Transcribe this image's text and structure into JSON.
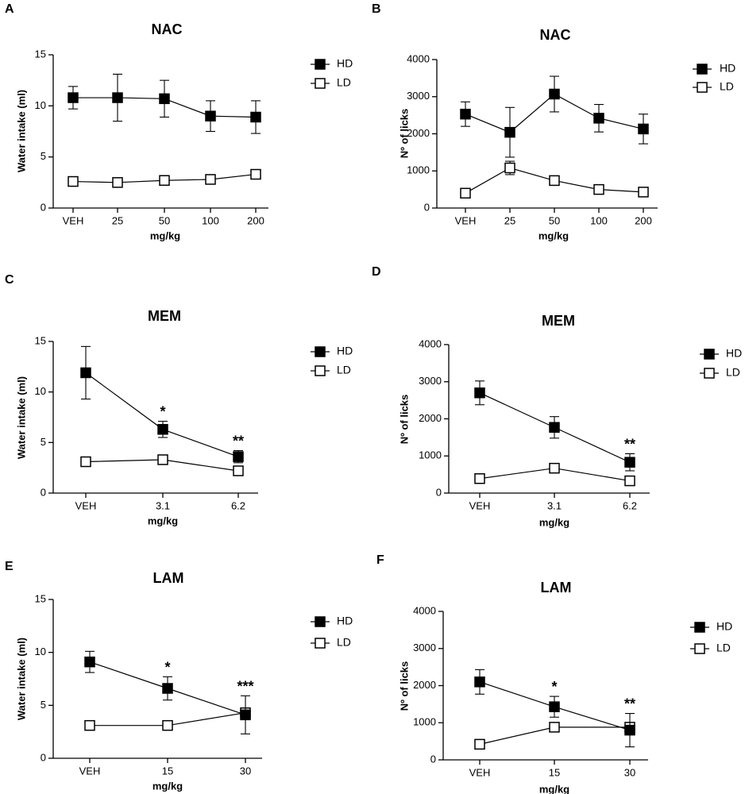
{
  "panel_labels": [
    "A",
    "B",
    "C",
    "D",
    "E",
    "F"
  ],
  "chart_data": [
    {
      "type": "line",
      "panel": "A",
      "title": "NAC",
      "xlabel": "mg/kg",
      "ylabel": "Water intake (ml)",
      "categories": [
        "VEH",
        "25",
        "50",
        "100",
        "200"
      ],
      "ylim": [
        0,
        15
      ],
      "yticks": [
        0,
        5,
        10,
        15
      ],
      "grid": false,
      "legend_position": "top-right",
      "series": [
        {
          "name": "HD",
          "marker": "filled-square",
          "values": [
            10.8,
            10.8,
            10.7,
            9.0,
            8.9
          ],
          "errors": [
            1.1,
            2.3,
            1.8,
            1.5,
            1.6
          ]
        },
        {
          "name": "LD",
          "marker": "open-square",
          "values": [
            2.6,
            2.5,
            2.7,
            2.8,
            3.3
          ],
          "errors": [
            0.2,
            0.2,
            0.2,
            0.2,
            0.3
          ]
        }
      ],
      "annotations": [
        "",
        "",
        "",
        "",
        ""
      ]
    },
    {
      "type": "line",
      "panel": "B",
      "title": "NAC",
      "xlabel": "mg/kg",
      "ylabel": "Nº of licks",
      "categories": [
        "VEH",
        "25",
        "50",
        "100",
        "200"
      ],
      "ylim": [
        0,
        4000
      ],
      "yticks": [
        0,
        1000,
        2000,
        3000,
        4000
      ],
      "grid": false,
      "legend_position": "top-right",
      "series": [
        {
          "name": "HD",
          "marker": "filled-square",
          "values": [
            2530,
            2040,
            3070,
            2420,
            2130
          ],
          "errors": [
            330,
            670,
            480,
            370,
            400
          ]
        },
        {
          "name": "LD",
          "marker": "open-square",
          "values": [
            400,
            1080,
            740,
            500,
            430
          ],
          "errors": [
            40,
            180,
            80,
            50,
            40
          ]
        }
      ],
      "annotations": [
        "",
        "",
        "",
        "",
        ""
      ]
    },
    {
      "type": "line",
      "panel": "C",
      "title": "MEM",
      "xlabel": "mg/kg",
      "ylabel": "Water intake (ml)",
      "categories": [
        "VEH",
        "3.1",
        "6.2"
      ],
      "ylim": [
        0,
        15
      ],
      "yticks": [
        0,
        5,
        10,
        15
      ],
      "grid": false,
      "legend_position": "top-right",
      "series": [
        {
          "name": "HD",
          "marker": "filled-square",
          "values": [
            11.9,
            6.3,
            3.6
          ],
          "errors": [
            2.6,
            0.8,
            0.6
          ]
        },
        {
          "name": "LD",
          "marker": "open-square",
          "values": [
            3.1,
            3.3,
            2.2
          ],
          "errors": [
            0.2,
            0.2,
            0.3
          ]
        }
      ],
      "annotations": [
        "",
        "*",
        "**"
      ]
    },
    {
      "type": "line",
      "panel": "D",
      "title": "MEM",
      "xlabel": "mg/kg",
      "ylabel": "Nº of licks",
      "categories": [
        "VEH",
        "3.1",
        "6.2"
      ],
      "ylim": [
        0,
        4000
      ],
      "yticks": [
        0,
        1000,
        2000,
        3000,
        4000
      ],
      "grid": false,
      "legend_position": "top-right",
      "series": [
        {
          "name": "HD",
          "marker": "filled-square",
          "values": [
            2700,
            1770,
            830
          ],
          "errors": [
            320,
            290,
            230
          ]
        },
        {
          "name": "LD",
          "marker": "open-square",
          "values": [
            390,
            670,
            330
          ],
          "errors": [
            40,
            90,
            60
          ]
        }
      ],
      "annotations": [
        "",
        "",
        "**"
      ]
    },
    {
      "type": "line",
      "panel": "E",
      "title": "LAM",
      "xlabel": "mg/kg",
      "ylabel": "Water intake (ml)",
      "categories": [
        "VEH",
        "15",
        "30"
      ],
      "ylim": [
        0,
        15
      ],
      "yticks": [
        0,
        5,
        10,
        15
      ],
      "grid": false,
      "legend_position": "top-right",
      "series": [
        {
          "name": "HD",
          "marker": "filled-square",
          "values": [
            9.1,
            6.6,
            4.1
          ],
          "errors": [
            1.0,
            1.1,
            1.8
          ]
        },
        {
          "name": "LD",
          "marker": "open-square",
          "values": [
            3.1,
            3.1,
            4.3
          ],
          "errors": [
            0.2,
            0.2,
            0.3
          ]
        }
      ],
      "annotations": [
        "",
        "*",
        "***"
      ]
    },
    {
      "type": "line",
      "panel": "F",
      "title": "LAM",
      "xlabel": "mg/kg",
      "ylabel": "Nº of licks",
      "categories": [
        "VEH",
        "15",
        "30"
      ],
      "ylim": [
        0,
        4000
      ],
      "yticks": [
        0,
        1000,
        2000,
        3000,
        4000
      ],
      "grid": false,
      "legend_position": "top-right",
      "series": [
        {
          "name": "HD",
          "marker": "filled-square",
          "values": [
            2100,
            1430,
            800
          ],
          "errors": [
            330,
            280,
            450
          ]
        },
        {
          "name": "LD",
          "marker": "open-square",
          "values": [
            420,
            880,
            880
          ],
          "errors": [
            40,
            80,
            120
          ]
        }
      ],
      "annotations": [
        "",
        "*",
        "**"
      ]
    }
  ]
}
